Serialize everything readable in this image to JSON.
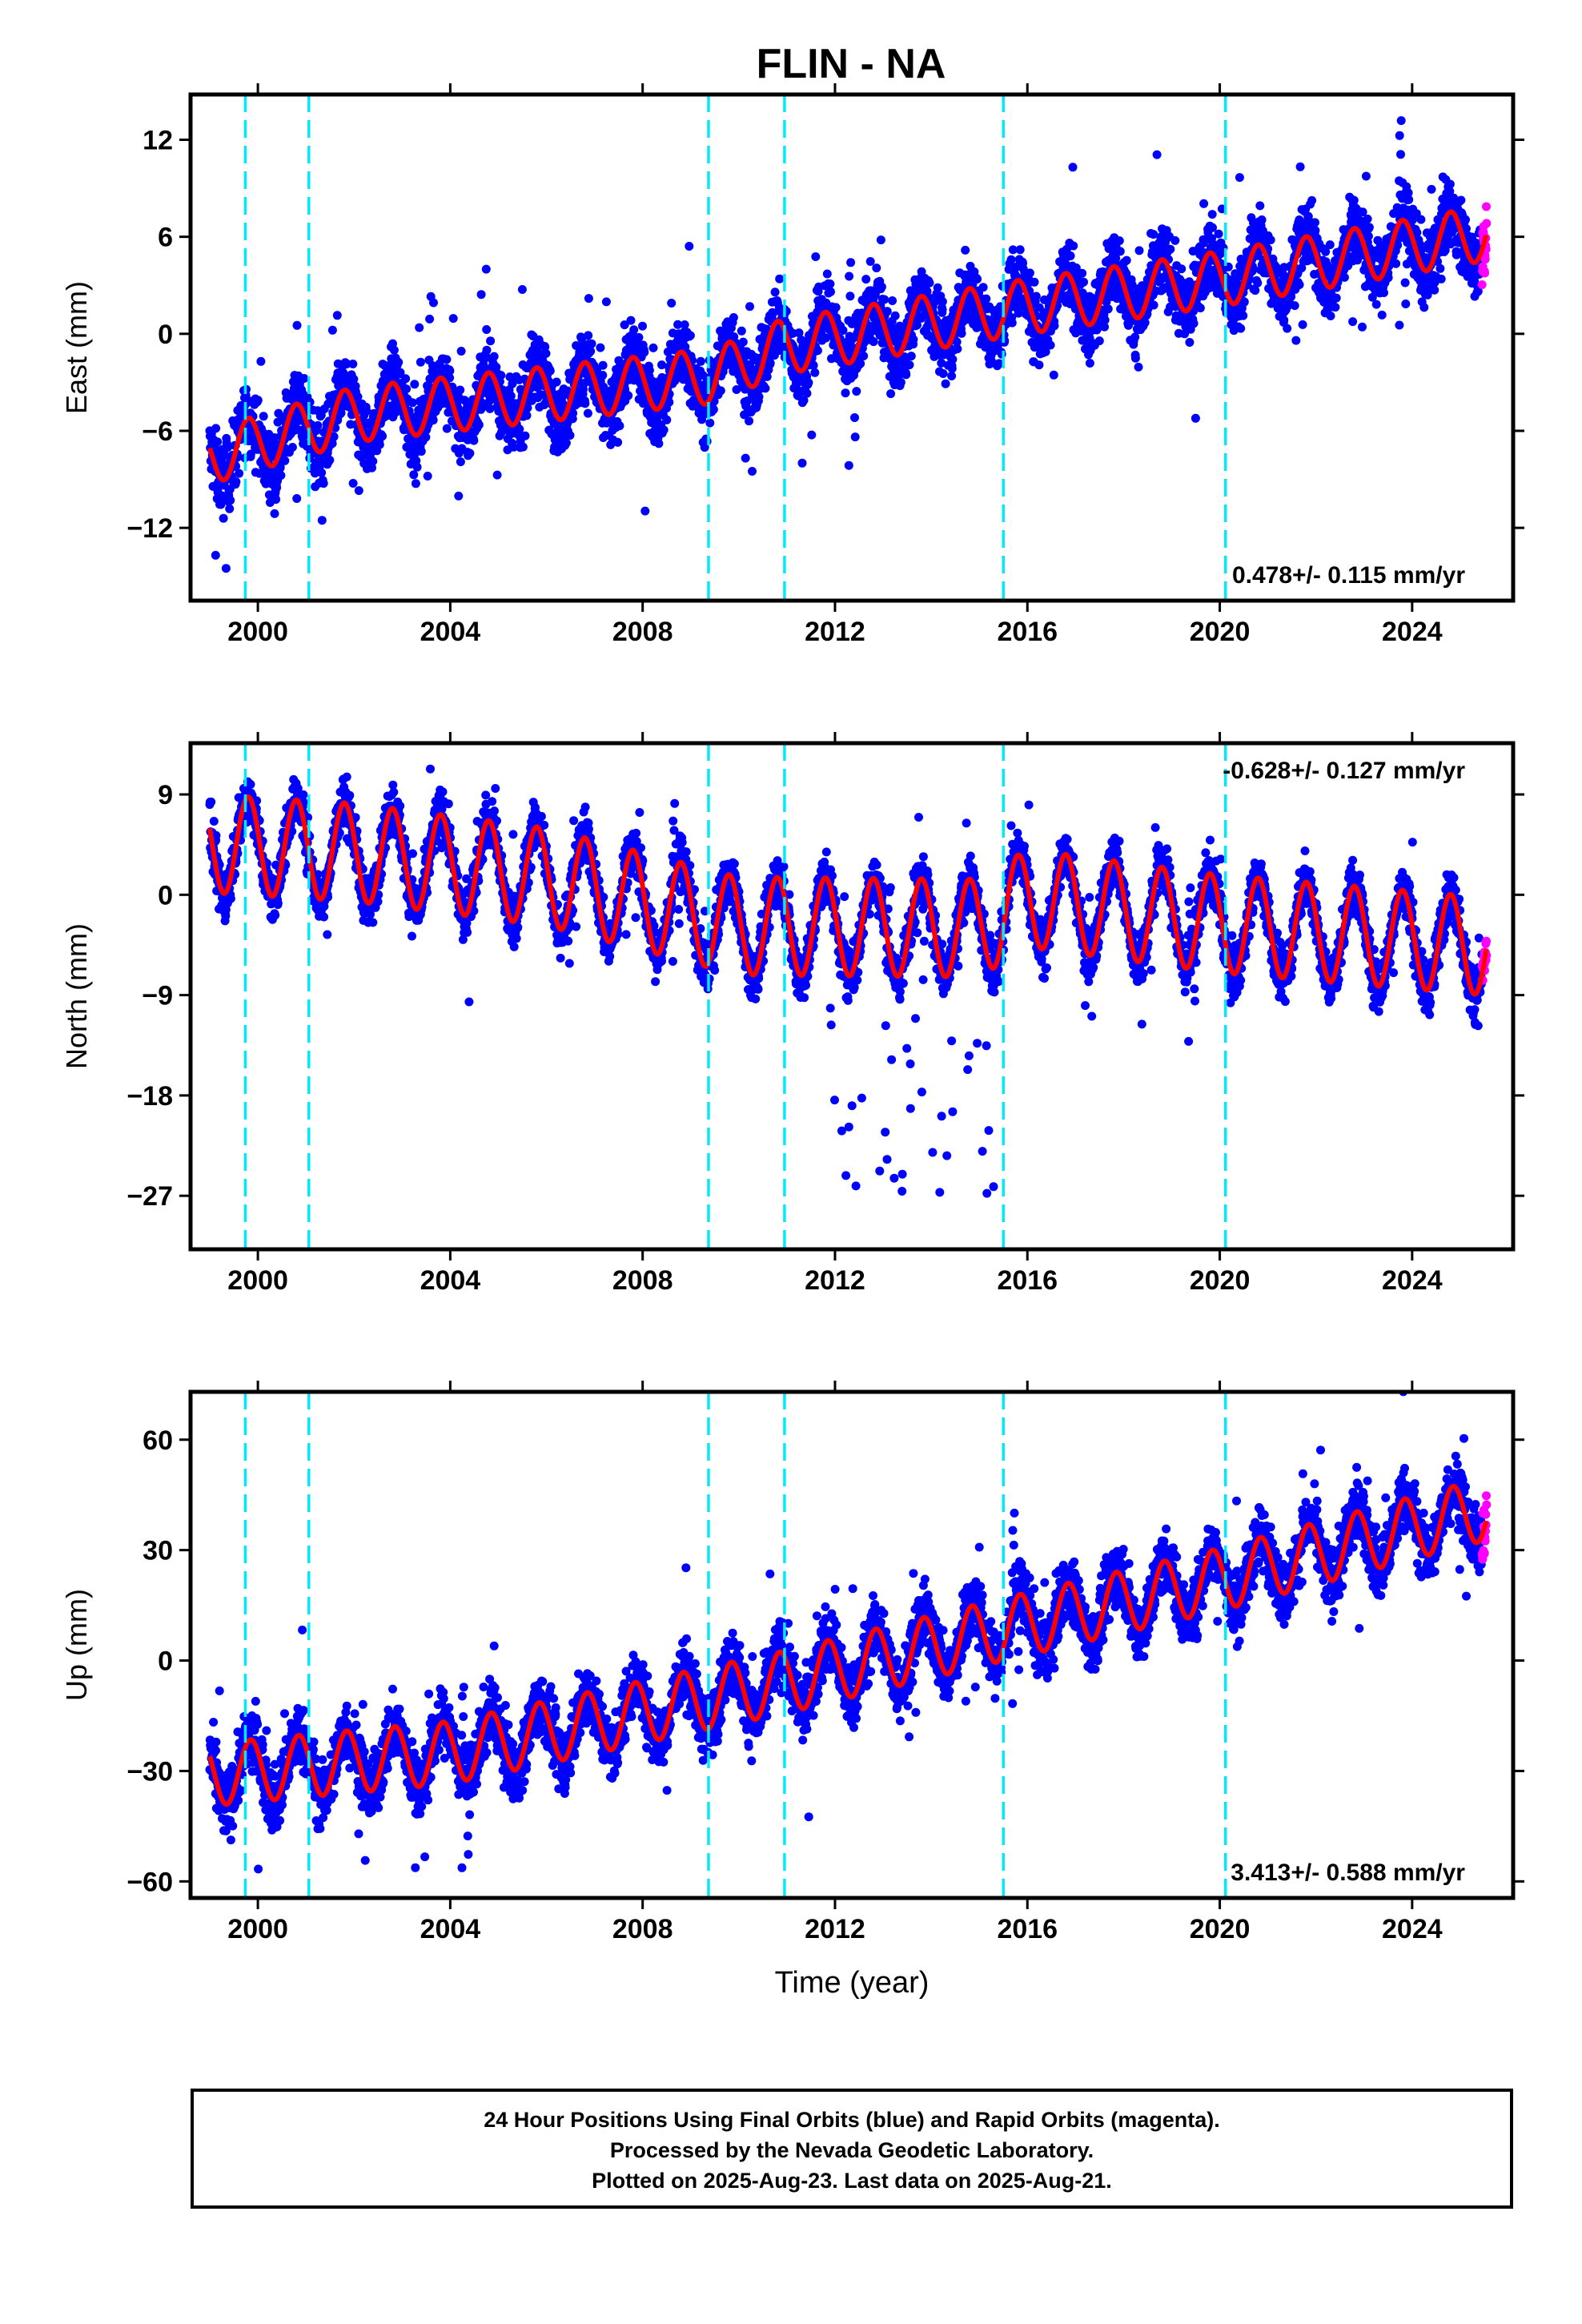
{
  "title": "FLIN - NA",
  "colors": {
    "final_orbits": "#0000ff",
    "rapid_orbits": "#ff00ff",
    "model_fit": "#ff0000",
    "equipment_changes": "#00eaff",
    "axes": "#000000"
  },
  "chart_data": [
    {
      "type": "scatter",
      "ylabel": "East (mm)",
      "xlabel": "",
      "xlim": [
        1998.6,
        2026.1
      ],
      "ylim": [
        -16.5,
        14.8
      ],
      "xticks": [
        2000,
        2004,
        2008,
        2012,
        2016,
        2020,
        2024
      ],
      "yticks": [
        -12,
        -6,
        0,
        6,
        12
      ],
      "rate_text": "0.478+/- 0.115 mm/yr",
      "rate_position": "bottom-right",
      "offset_lines": [
        1999.74,
        2001.06,
        2009.37,
        2010.95,
        2015.5,
        2020.12
      ],
      "series": {
        "start": 1999.0,
        "end": 2025.55,
        "rapid_start": 2025.45,
        "trend": [
          [
            1999.0,
            -7.6
          ],
          [
            2002.0,
            -5.0
          ],
          [
            2009.5,
            -2.6
          ],
          [
            2010.9,
            -0.8
          ],
          [
            2016.0,
            1.7
          ],
          [
            2020.0,
            3.4
          ],
          [
            2025.5,
            6.2
          ]
        ],
        "amplitude": 1.7,
        "noise": 1.5
      }
    },
    {
      "type": "scatter",
      "ylabel": "North (mm)",
      "xlabel": "",
      "xlim": [
        1998.6,
        2026.1
      ],
      "ylim": [
        -31.8,
        13.6
      ],
      "xticks": [
        2000,
        2004,
        2008,
        2012,
        2016,
        2020,
        2024
      ],
      "yticks": [
        -27,
        -18,
        -9,
        0,
        9
      ],
      "rate_text": "-0.628+/- 0.127 mm/yr",
      "rate_position": "top-right",
      "offset_lines": [
        1999.74,
        2001.06,
        2009.37,
        2010.95,
        2015.5,
        2020.12
      ],
      "series": {
        "start": 1999.0,
        "end": 2025.55,
        "rapid_start": 2025.45,
        "trend": [
          [
            1999.0,
            4.6
          ],
          [
            2002.0,
            3.8
          ],
          [
            2006.0,
            1.6
          ],
          [
            2010.0,
            -2.8
          ],
          [
            2015.0,
            -3.0
          ],
          [
            2016.0,
            -0.3
          ],
          [
            2020.0,
            -2.6
          ],
          [
            2025.5,
            -4.6
          ]
        ],
        "amplitude": 4.4,
        "noise": 1.6
      }
    },
    {
      "type": "scatter",
      "ylabel": "Up (mm)",
      "xlabel": "Time (year)",
      "xlim": [
        1998.6,
        2026.1
      ],
      "ylim": [
        -64.5,
        73.0
      ],
      "xticks": [
        2000,
        2004,
        2008,
        2012,
        2016,
        2020,
        2024
      ],
      "yticks": [
        -60,
        -30,
        0,
        30,
        60
      ],
      "rate_text": "3.413+/- 0.588 mm/yr",
      "rate_position": "bottom-right",
      "offset_lines": [
        1999.74,
        2001.06,
        2009.37,
        2010.95,
        2015.5,
        2020.12
      ],
      "series": {
        "start": 1999.0,
        "end": 2025.55,
        "rapid_start": 2025.45,
        "trend": [
          [
            1999.0,
            -31.0
          ],
          [
            2004.0,
            -25.0
          ],
          [
            2008.0,
            -14.0
          ],
          [
            2010.9,
            -6.0
          ],
          [
            2016.0,
            10.0
          ],
          [
            2020.0,
            22.0
          ],
          [
            2024.0,
            36.0
          ],
          [
            2025.5,
            41.0
          ]
        ],
        "amplitude": 8.5,
        "noise": 6.0
      }
    }
  ],
  "caption": {
    "line1": "24 Hour Positions Using Final Orbits (blue) and Rapid Orbits (magenta).",
    "line2": "Processed by the Nevada Geodetic Laboratory.",
    "line3": "Plotted on 2025-Aug-23. Last data on 2025-Aug-21."
  }
}
